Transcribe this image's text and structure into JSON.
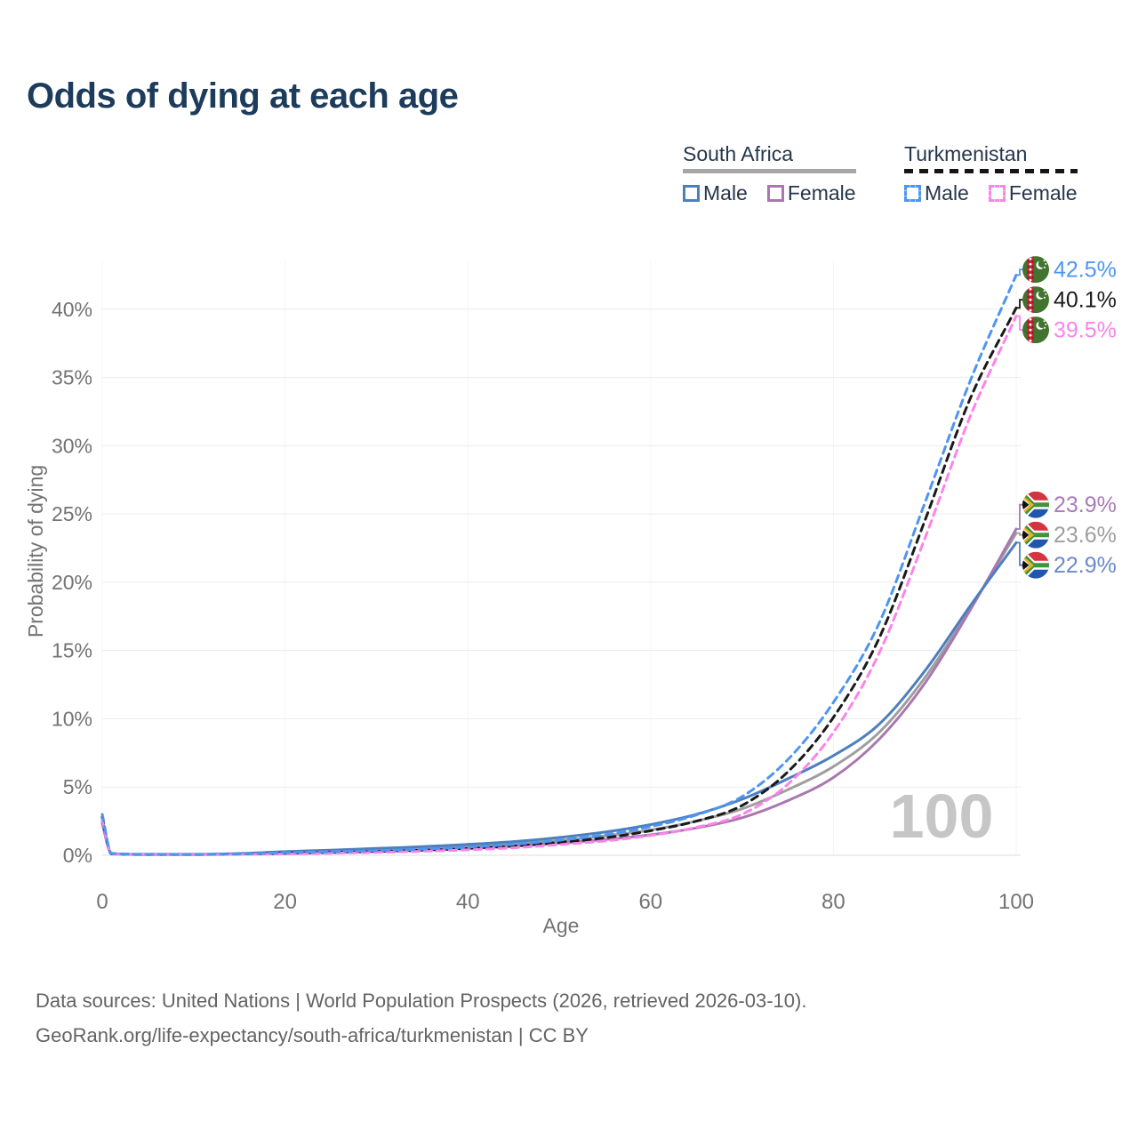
{
  "title": "Odds of dying at each age",
  "legend": {
    "groups": [
      {
        "country": "South Africa",
        "line_color": "#a6a6a6",
        "line_style": "solid",
        "items": [
          {
            "label": "Male",
            "color": "#4d7fbe",
            "style": "solid"
          },
          {
            "label": "Female",
            "color": "#a878af",
            "style": "solid"
          }
        ]
      },
      {
        "country": "Turkmenistan",
        "line_color": "#151515",
        "line_style": "dashed",
        "items": [
          {
            "label": "Male",
            "color": "#4e95f2",
            "style": "dashed"
          },
          {
            "label": "Female",
            "color": "#fb84e9",
            "style": "dashed"
          }
        ]
      }
    ]
  },
  "watermark": "100",
  "footer": {
    "line1": "Data sources: United Nations | World Population Prospects (2026, retrieved 2026-03-10).",
    "line2": "GeoRank.org/life-expectancy/south-africa/turkmenistan | CC BY"
  },
  "chart_data": {
    "type": "line",
    "title": "Odds of dying at each age",
    "xlabel": "Age",
    "ylabel": "Probability of dying",
    "xlim": [
      0,
      100
    ],
    "ylim": [
      0,
      43.5
    ],
    "x_ticks": [
      0,
      20,
      40,
      60,
      80,
      100
    ],
    "y_ticks": [
      "0%",
      "5%",
      "10%",
      "15%",
      "20%",
      "25%",
      "30%",
      "35%",
      "40%"
    ],
    "grid": true,
    "legend_position": "top-right",
    "x": [
      0,
      1,
      5,
      10,
      15,
      20,
      25,
      30,
      35,
      40,
      45,
      50,
      55,
      60,
      65,
      70,
      75,
      80,
      85,
      90,
      95,
      100
    ],
    "series": [
      {
        "name": "South Africa Both sexes",
        "country": "South Africa",
        "sex": "Both",
        "flag": "za",
        "color": "#9e9e9e",
        "dash": false,
        "end_label": "23.6%",
        "end_label_color": "#9e9e9e",
        "values": [
          2.4,
          0.11,
          0.06,
          0.06,
          0.1,
          0.2,
          0.29,
          0.39,
          0.5,
          0.65,
          0.83,
          1.08,
          1.42,
          1.85,
          2.5,
          3.4,
          4.8,
          6.5,
          9.0,
          13.0,
          18.1,
          23.6
        ]
      },
      {
        "name": "South Africa Female",
        "country": "South Africa",
        "sex": "Female",
        "flag": "za",
        "color": "#a878af",
        "dash": false,
        "end_label": "23.9%",
        "end_label_color": "#ab7cb5",
        "values": [
          2.3,
          0.1,
          0.05,
          0.05,
          0.08,
          0.13,
          0.2,
          0.28,
          0.38,
          0.5,
          0.66,
          0.88,
          1.15,
          1.5,
          2.0,
          2.75,
          4.0,
          5.7,
          8.5,
          12.6,
          18.0,
          23.9
        ]
      },
      {
        "name": "South Africa Male",
        "country": "South Africa",
        "sex": "Male",
        "flag": "za",
        "color": "#4d7fbe",
        "dash": false,
        "end_label": "22.9%",
        "end_label_color": "#6b89c9",
        "values": [
          2.5,
          0.12,
          0.07,
          0.07,
          0.13,
          0.27,
          0.38,
          0.5,
          0.63,
          0.8,
          1.0,
          1.3,
          1.7,
          2.25,
          3.0,
          4.1,
          5.6,
          7.3,
          9.6,
          13.5,
          18.3,
          22.9
        ]
      },
      {
        "name": "Turkmenistan Both sexes",
        "country": "Turkmenistan",
        "sex": "Both",
        "flag": "tm",
        "color": "#1a1a1a",
        "dash": true,
        "end_label": "40.1%",
        "end_label_color": "#1a1a1a",
        "values": [
          2.8,
          0.13,
          0.06,
          0.06,
          0.09,
          0.15,
          0.21,
          0.28,
          0.37,
          0.5,
          0.68,
          0.95,
          1.28,
          1.8,
          2.5,
          3.65,
          6.1,
          10.1,
          15.9,
          24.5,
          33.5,
          40.1
        ]
      },
      {
        "name": "Turkmenistan Female",
        "country": "Turkmenistan",
        "sex": "Female",
        "flag": "tm",
        "color": "#fb84e9",
        "dash": true,
        "end_label": "39.5%",
        "end_label_color": "#fb84e9",
        "values": [
          2.6,
          0.12,
          0.05,
          0.05,
          0.07,
          0.1,
          0.15,
          0.21,
          0.29,
          0.4,
          0.55,
          0.78,
          1.05,
          1.45,
          2.05,
          3.0,
          5.2,
          9.0,
          14.8,
          23.2,
          32.2,
          39.5
        ]
      },
      {
        "name": "Turkmenistan Male",
        "country": "Turkmenistan",
        "sex": "Male",
        "flag": "tm",
        "color": "#4e95f2",
        "dash": true,
        "end_label": "42.5%",
        "end_label_color": "#4e95f2",
        "values": [
          3.0,
          0.15,
          0.07,
          0.06,
          0.1,
          0.19,
          0.26,
          0.34,
          0.45,
          0.6,
          0.8,
          1.1,
          1.5,
          2.1,
          2.95,
          4.3,
          7.0,
          11.2,
          17.0,
          25.8,
          34.8,
          42.5
        ]
      }
    ]
  }
}
